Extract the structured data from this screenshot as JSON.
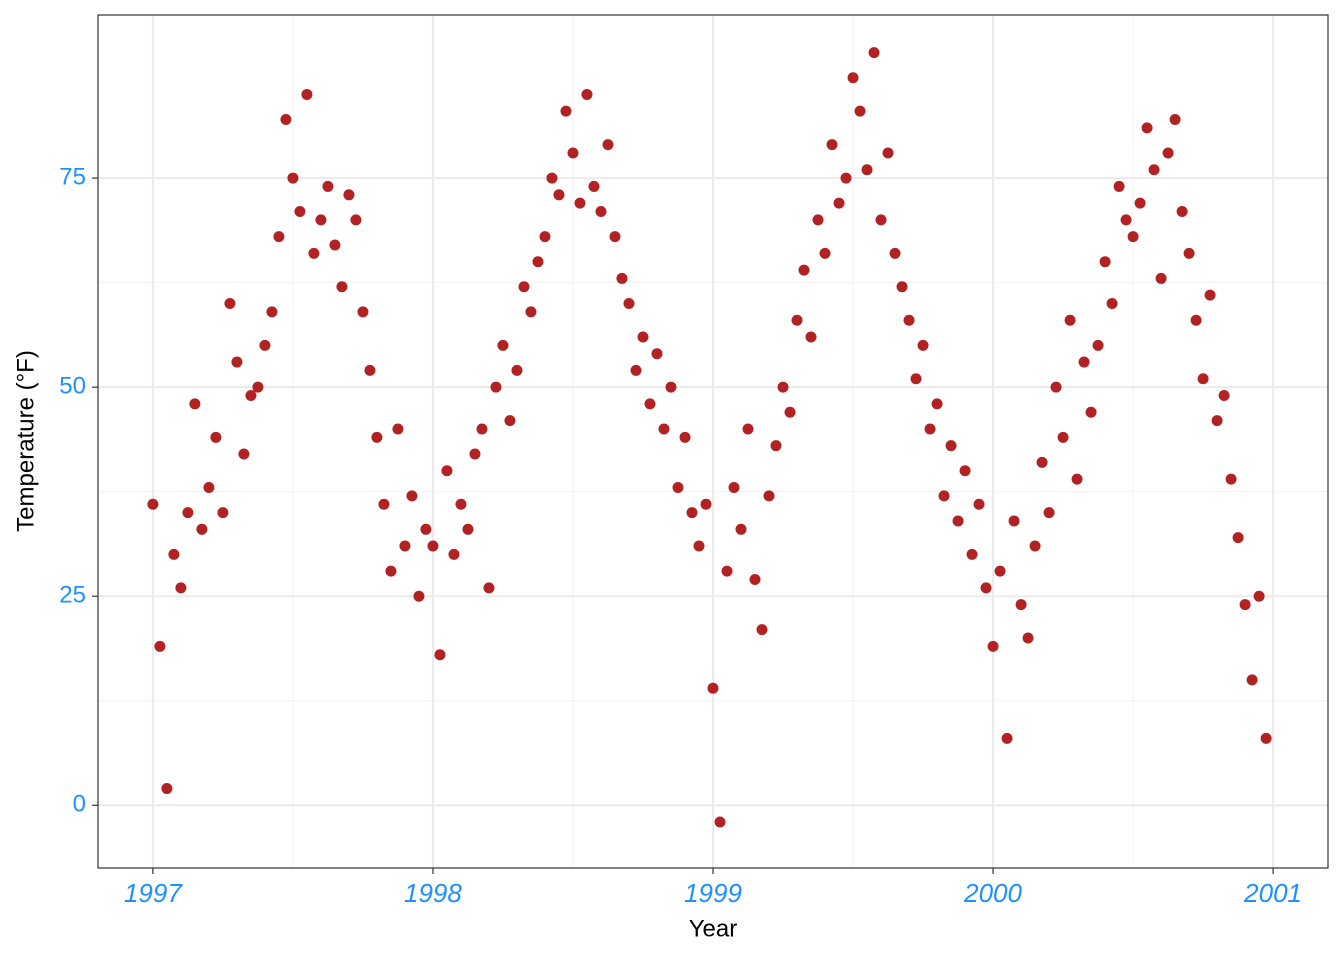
{
  "chart_data": {
    "type": "scatter",
    "x_label": "Year",
    "y_label": "Temperature (°F)",
    "color": "#b22222",
    "tick_color": "#1e90ff",
    "grid": true,
    "xlim": [
      1996.804,
      2001.196
    ],
    "ylim": [
      -7.5,
      94.5
    ],
    "xticks": [
      1997,
      1998,
      1999,
      2000,
      2001
    ],
    "yticks": [
      0,
      25,
      50,
      75
    ],
    "x": [
      1997.0,
      1997.025,
      1997.05,
      1997.075,
      1997.1,
      1997.125,
      1997.15,
      1997.175,
      1997.2,
      1997.225,
      1997.25,
      1997.275,
      1997.3,
      1997.325,
      1997.35,
      1997.375,
      1997.4,
      1997.425,
      1997.45,
      1997.475,
      1997.5,
      1997.525,
      1997.55,
      1997.575,
      1997.6,
      1997.625,
      1997.65,
      1997.675,
      1997.7,
      1997.725,
      1997.75,
      1997.775,
      1997.8,
      1997.825,
      1997.85,
      1997.875,
      1997.9,
      1997.925,
      1997.95,
      1997.975,
      1998.0,
      1998.025,
      1998.05,
      1998.075,
      1998.1,
      1998.125,
      1998.15,
      1998.175,
      1998.2,
      1998.225,
      1998.25,
      1998.275,
      1998.3,
      1998.325,
      1998.35,
      1998.375,
      1998.4,
      1998.425,
      1998.45,
      1998.475,
      1998.5,
      1998.525,
      1998.55,
      1998.575,
      1998.6,
      1998.625,
      1998.65,
      1998.675,
      1998.7,
      1998.725,
      1998.75,
      1998.775,
      1998.8,
      1998.825,
      1998.85,
      1998.875,
      1998.9,
      1998.925,
      1998.95,
      1998.975,
      1999.0,
      1999.025,
      1999.05,
      1999.075,
      1999.1,
      1999.125,
      1999.15,
      1999.175,
      1999.2,
      1999.225,
      1999.25,
      1999.275,
      1999.3,
      1999.325,
      1999.35,
      1999.375,
      1999.4,
      1999.425,
      1999.45,
      1999.475,
      1999.5,
      1999.525,
      1999.55,
      1999.575,
      1999.6,
      1999.625,
      1999.65,
      1999.675,
      1999.7,
      1999.725,
      1999.75,
      1999.775,
      1999.8,
      1999.825,
      1999.85,
      1999.875,
      1999.9,
      1999.925,
      1999.95,
      1999.975,
      2000.0,
      2000.025,
      2000.05,
      2000.075,
      2000.1,
      2000.125,
      2000.15,
      2000.175,
      2000.2,
      2000.225,
      2000.25,
      2000.275,
      2000.3,
      2000.325,
      2000.35,
      2000.375,
      2000.4,
      2000.425,
      2000.45,
      2000.475,
      2000.5,
      2000.525,
      2000.55,
      2000.575,
      2000.6,
      2000.625,
      2000.65,
      2000.675,
      2000.7,
      2000.725,
      2000.75,
      2000.775,
      2000.8,
      2000.825,
      2000.85,
      2000.875,
      2000.9,
      2000.925,
      2000.95,
      2000.975
    ],
    "values": [
      36,
      19,
      2,
      30,
      26,
      35,
      48,
      33,
      38,
      44,
      35,
      60,
      53,
      42,
      49,
      50,
      55,
      59,
      68,
      82,
      75,
      71,
      85,
      66,
      70,
      74,
      67,
      62,
      73,
      70,
      59,
      52,
      44,
      36,
      28,
      45,
      31,
      37,
      25,
      33,
      31,
      18,
      40,
      30,
      36,
      33,
      42,
      45,
      26,
      50,
      55,
      46,
      52,
      62,
      59,
      65,
      68,
      75,
      73,
      83,
      78,
      72,
      85,
      74,
      71,
      79,
      68,
      63,
      60,
      52,
      56,
      48,
      54,
      45,
      50,
      38,
      44,
      35,
      31,
      36,
      14,
      -2,
      28,
      38,
      33,
      45,
      27,
      21,
      37,
      43,
      50,
      47,
      58,
      64,
      56,
      70,
      66,
      79,
      72,
      75,
      87,
      83,
      76,
      90,
      70,
      78,
      66,
      62,
      58,
      51,
      55,
      45,
      48,
      37,
      43,
      34,
      40,
      30,
      36,
      26,
      19,
      28,
      8,
      34,
      24,
      20,
      31,
      41,
      35,
      50,
      44,
      58,
      39,
      53,
      47,
      55,
      65,
      60,
      74,
      70,
      68,
      72,
      81,
      76,
      63,
      78,
      82,
      71,
      66,
      58,
      51,
      61,
      46,
      49,
      39,
      32,
      24,
      15,
      25,
      8
    ]
  }
}
